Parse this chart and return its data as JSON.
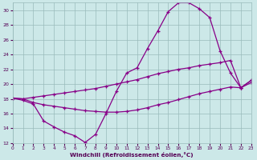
{
  "background_color": "#cce8e8",
  "line_color": "#880088",
  "xlim": [
    0,
    23
  ],
  "ylim": [
    12,
    31
  ],
  "ytick_vals": [
    12,
    14,
    16,
    18,
    20,
    22,
    24,
    26,
    28,
    30
  ],
  "xtick_vals": [
    0,
    1,
    2,
    3,
    4,
    5,
    6,
    7,
    8,
    9,
    10,
    11,
    12,
    13,
    14,
    15,
    16,
    17,
    18,
    19,
    20,
    21,
    22,
    23
  ],
  "xlabel": "Windchill (Refroidissement éolien,°C)",
  "curve1_x": [
    0,
    1,
    2,
    3,
    4,
    5,
    6,
    7,
    8,
    9,
    10,
    11,
    12,
    13,
    14,
    15,
    16,
    17,
    18,
    19,
    20,
    21,
    22,
    23
  ],
  "curve1_y": [
    18.1,
    17.8,
    17.3,
    15.0,
    14.2,
    13.5,
    13.0,
    12.1,
    13.2,
    16.0,
    19.0,
    21.5,
    22.2,
    24.8,
    27.2,
    29.8,
    31.0,
    31.0,
    30.2,
    29.0,
    24.5,
    21.5,
    19.5,
    20.5
  ],
  "curve2_x": [
    0,
    1,
    2,
    3,
    4,
    5,
    6,
    7,
    8,
    9,
    10,
    11,
    12,
    13,
    14,
    15,
    16,
    17,
    18,
    19,
    20,
    21,
    22,
    23
  ],
  "curve2_y": [
    18.1,
    18.0,
    18.2,
    18.4,
    18.6,
    18.8,
    19.0,
    19.2,
    19.4,
    19.7,
    20.0,
    20.3,
    20.6,
    21.0,
    21.4,
    21.7,
    22.0,
    22.2,
    22.5,
    22.7,
    22.9,
    23.2,
    19.5,
    20.5
  ],
  "curve3_x": [
    0,
    1,
    2,
    3,
    4,
    5,
    6,
    7,
    8,
    9,
    10,
    11,
    12,
    13,
    14,
    15,
    16,
    17,
    18,
    19,
    20,
    21,
    22,
    23
  ],
  "curve3_y": [
    18.1,
    18.0,
    17.5,
    17.2,
    17.0,
    16.8,
    16.6,
    16.4,
    16.3,
    16.2,
    16.2,
    16.3,
    16.5,
    16.8,
    17.2,
    17.5,
    17.9,
    18.3,
    18.7,
    19.0,
    19.3,
    19.6,
    19.5,
    20.2
  ]
}
